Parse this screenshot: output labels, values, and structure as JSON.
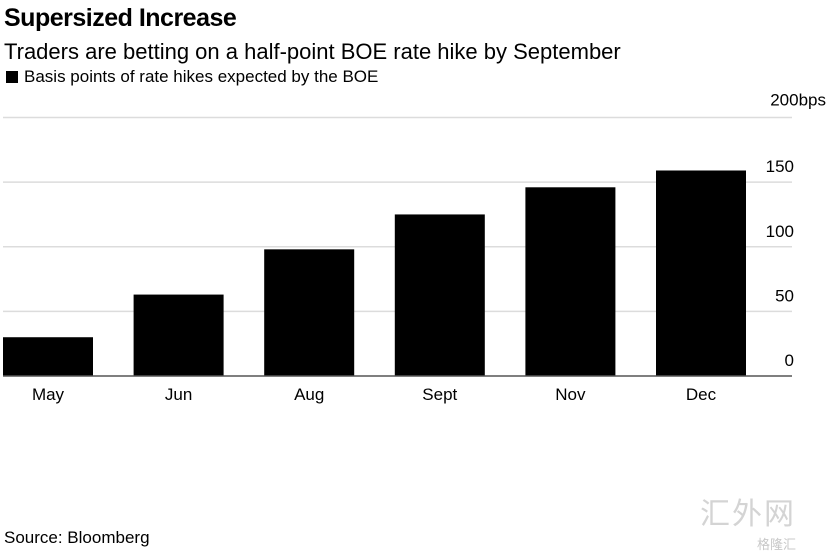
{
  "chart_data": {
    "type": "bar",
    "title": "Supersized Increase",
    "subtitle": "Traders are betting on a half-point BOE rate hike by September",
    "legend": [
      "Basis points of rate hikes expected by the BOE"
    ],
    "legend_placement": "top-left",
    "categories": [
      "May",
      "Jun",
      "Aug",
      "Sept",
      "Nov",
      "Dec"
    ],
    "values": [
      30,
      63,
      98,
      125,
      146,
      159
    ],
    "ylim": [
      0,
      200
    ],
    "yticks": [
      0,
      50,
      100,
      150,
      200
    ],
    "ytick_labels": [
      "0",
      "50",
      "100",
      "150",
      "200bps"
    ],
    "ylabel": "",
    "xlabel": "",
    "grid": true,
    "bar_color": "#000000",
    "source": "Source: Bloomberg"
  },
  "watermark": {
    "text": "汇外网",
    "sub": "格隆汇"
  }
}
